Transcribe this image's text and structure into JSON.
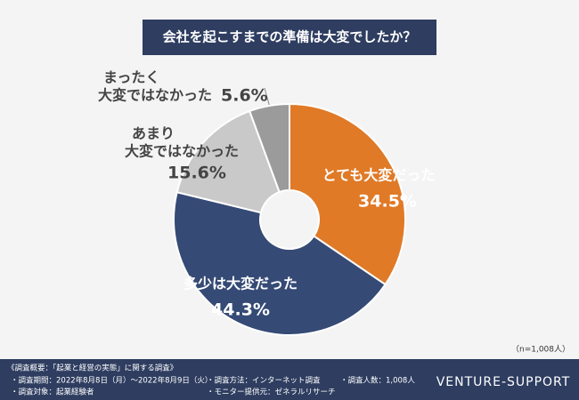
{
  "chart_data": {
    "type": "donut",
    "title": "会社を起こすまでの準備は大変でしたか？",
    "categories": [
      [
        "とても大変だった"
      ],
      [
        "多少は大変だった"
      ],
      [
        "あまり",
        "大変ではなかった"
      ],
      [
        "まったく",
        "大変ではなかった"
      ]
    ],
    "values": [
      34.5,
      44.3,
      15.6,
      5.6
    ],
    "value_labels": [
      "34.5%",
      "44.3%",
      "15.6%",
      "5.6%"
    ],
    "colors": [
      "#e07a27",
      "#354a75",
      "#c9c9c9",
      "#9b9b9b"
    ],
    "note": "（n=1,008人）"
  },
  "footer": {
    "heading": "《調査概要：「起業と経営の実態」に関する調査》",
    "period": "・調査期間：2022年8月8日（月）～2022年8月9日（火）",
    "target": "・調査対象：起業経験者",
    "method": "・調査方法：インターネット調査",
    "provider": "・モニター提供元：ゼネラルリサーチ",
    "count": "・調査人数：1,008人",
    "brand": "VENTURE-SUPPORT"
  }
}
